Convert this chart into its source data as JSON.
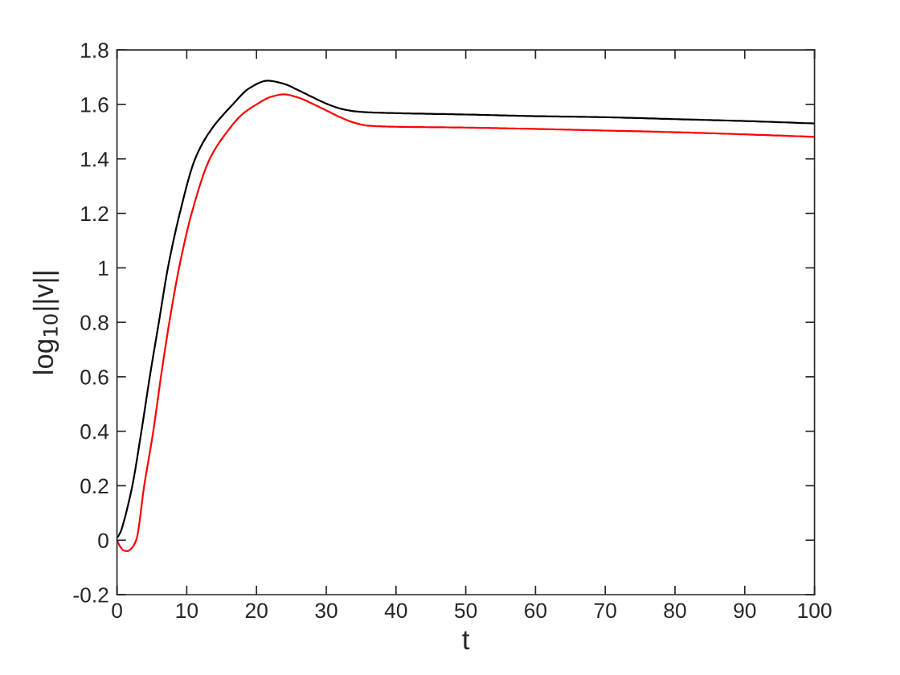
{
  "chart_data": {
    "type": "line",
    "xlabel": "t",
    "ylabel": "log$_{10}$||v||",
    "xlim": [
      0,
      100
    ],
    "xticks": [
      0,
      10,
      20,
      30,
      40,
      50,
      60,
      70,
      80,
      90,
      100
    ],
    "ylim": [
      -0.2,
      1.8
    ],
    "yticks": [
      -0.2,
      0,
      0.2,
      0.4,
      0.6,
      0.8,
      1,
      1.2,
      1.4,
      1.6,
      1.8
    ],
    "grid": false,
    "marker": "none",
    "line_style": "solid",
    "series": [
      {
        "color": "#000000",
        "x": [
          0,
          0.5,
          1.0,
          1.5,
          2.2,
          3.5,
          4.7,
          6.0,
          7.3,
          9.0,
          11.2,
          13.3,
          16.6,
          19,
          21.6,
          24,
          26,
          28,
          30,
          32,
          34,
          36,
          40,
          50,
          60,
          70,
          80,
          90,
          100
        ],
        "values": [
          0.01,
          0.03,
          0.07,
          0.12,
          0.2,
          0.4,
          0.6,
          0.8,
          1.0,
          1.2,
          1.4,
          1.5,
          1.6,
          1.66,
          1.687,
          1.675,
          1.652,
          1.627,
          1.603,
          1.585,
          1.575,
          1.571,
          1.568,
          1.563,
          1.557,
          1.553,
          1.546,
          1.539,
          1.53
        ]
      },
      {
        "color": "#ff0000",
        "x": [
          0,
          0.5,
          1.0,
          1.5,
          2.0,
          2.75,
          3.9,
          5.2,
          6.3,
          7.5,
          8.9,
          10.7,
          13.3,
          15.8,
          17.8,
          20.0,
          22,
          23.9,
          26,
          28,
          30,
          32,
          34,
          36,
          40,
          50,
          60,
          70,
          80,
          90,
          100
        ],
        "values": [
          0.0,
          -0.025,
          -0.038,
          -0.04,
          -0.032,
          0.0,
          0.2,
          0.4,
          0.6,
          0.8,
          1.0,
          1.2,
          1.4,
          1.5,
          1.56,
          1.6,
          1.627,
          1.637,
          1.625,
          1.603,
          1.578,
          1.553,
          1.533,
          1.522,
          1.518,
          1.515,
          1.51,
          1.504,
          1.498,
          1.49,
          1.481
        ]
      }
    ]
  }
}
